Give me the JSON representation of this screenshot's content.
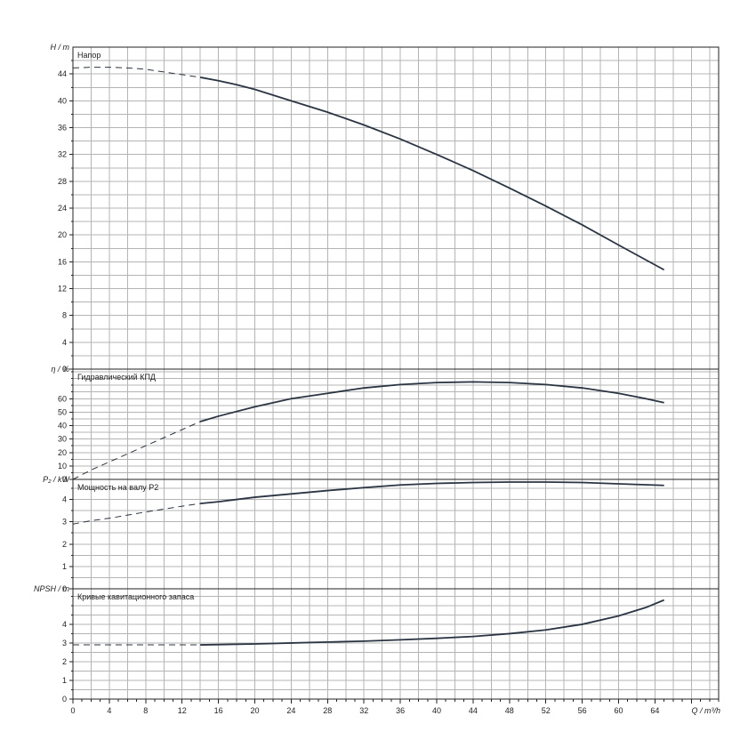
{
  "chart_data": [
    {
      "type": "line",
      "title": "Напор",
      "ylabel": "H / m",
      "xlim": [
        0,
        71
      ],
      "ylim": [
        0,
        48
      ],
      "yticks": [
        0,
        4,
        8,
        12,
        16,
        20,
        24,
        28,
        32,
        36,
        40,
        44
      ],
      "grid": true,
      "series": [
        {
          "style": "dashed",
          "x": [
            0,
            2,
            4,
            6,
            8,
            10,
            12,
            14
          ],
          "y": [
            44.9,
            45.0,
            45.0,
            44.9,
            44.7,
            44.3,
            43.9,
            43.5
          ]
        },
        {
          "style": "solid",
          "x": [
            14,
            16,
            18,
            20,
            24,
            28,
            32,
            36,
            40,
            44,
            48,
            52,
            56,
            60,
            65
          ],
          "y": [
            43.5,
            43.0,
            42.4,
            41.7,
            40.0,
            38.3,
            36.4,
            34.3,
            32.0,
            29.6,
            27.0,
            24.3,
            21.5,
            18.5,
            14.8
          ]
        }
      ]
    },
    {
      "type": "line",
      "title": "Гидравлический КПД",
      "ylabel": "η / %",
      "xlim": [
        0,
        71
      ],
      "ylim": [
        0,
        82
      ],
      "yticks": [
        0,
        10,
        20,
        30,
        40,
        50,
        60
      ],
      "grid": true,
      "series": [
        {
          "style": "dashed",
          "x": [
            0,
            2,
            4,
            6,
            8,
            10,
            12,
            14
          ],
          "y": [
            0,
            7,
            13,
            19,
            25,
            31,
            37,
            43
          ]
        },
        {
          "style": "solid",
          "x": [
            14,
            16,
            20,
            24,
            28,
            32,
            36,
            40,
            44,
            48,
            52,
            56,
            60,
            63,
            65
          ],
          "y": [
            43,
            47,
            54,
            60,
            64,
            68,
            70.5,
            72,
            72.5,
            72,
            70.5,
            68,
            64,
            60,
            57
          ]
        }
      ]
    },
    {
      "type": "line",
      "title": "Мощность на валу P2",
      "ylabel": "P₂ / kW",
      "xlim": [
        0,
        71
      ],
      "ylim": [
        0,
        4.9
      ],
      "yticks": [
        0,
        1,
        2,
        3,
        4
      ],
      "grid": true,
      "series": [
        {
          "style": "dashed",
          "x": [
            0,
            2,
            4,
            6,
            8,
            10,
            12,
            14
          ],
          "y": [
            2.9,
            3.05,
            3.16,
            3.3,
            3.44,
            3.57,
            3.7,
            3.82
          ]
        },
        {
          "style": "solid",
          "x": [
            14,
            16,
            20,
            24,
            28,
            32,
            36,
            40,
            44,
            48,
            52,
            56,
            60,
            65
          ],
          "y": [
            3.82,
            3.9,
            4.1,
            4.25,
            4.4,
            4.53,
            4.65,
            4.72,
            4.76,
            4.78,
            4.78,
            4.76,
            4.7,
            4.63
          ]
        }
      ]
    },
    {
      "type": "line",
      "title": "Кривые кавитационного запаса",
      "ylabel": "NPSH / m",
      "xlabel": "Q / m³/h",
      "xlim": [
        0,
        71
      ],
      "ylim": [
        0,
        5.9
      ],
      "yticks": [
        0,
        1,
        2,
        3,
        4
      ],
      "xticks": [
        0,
        4,
        8,
        12,
        16,
        20,
        24,
        28,
        32,
        36,
        40,
        44,
        48,
        52,
        56,
        60,
        64
      ],
      "grid": true,
      "series": [
        {
          "style": "dashed",
          "x": [
            0,
            4,
            8,
            12,
            14
          ],
          "y": [
            2.9,
            2.9,
            2.9,
            2.9,
            2.9
          ]
        },
        {
          "style": "solid",
          "x": [
            14,
            20,
            24,
            28,
            32,
            36,
            40,
            44,
            48,
            52,
            56,
            60,
            63,
            65
          ],
          "y": [
            2.9,
            2.95,
            3.0,
            3.05,
            3.1,
            3.17,
            3.25,
            3.35,
            3.5,
            3.7,
            4.0,
            4.45,
            4.9,
            5.3
          ]
        }
      ]
    }
  ]
}
